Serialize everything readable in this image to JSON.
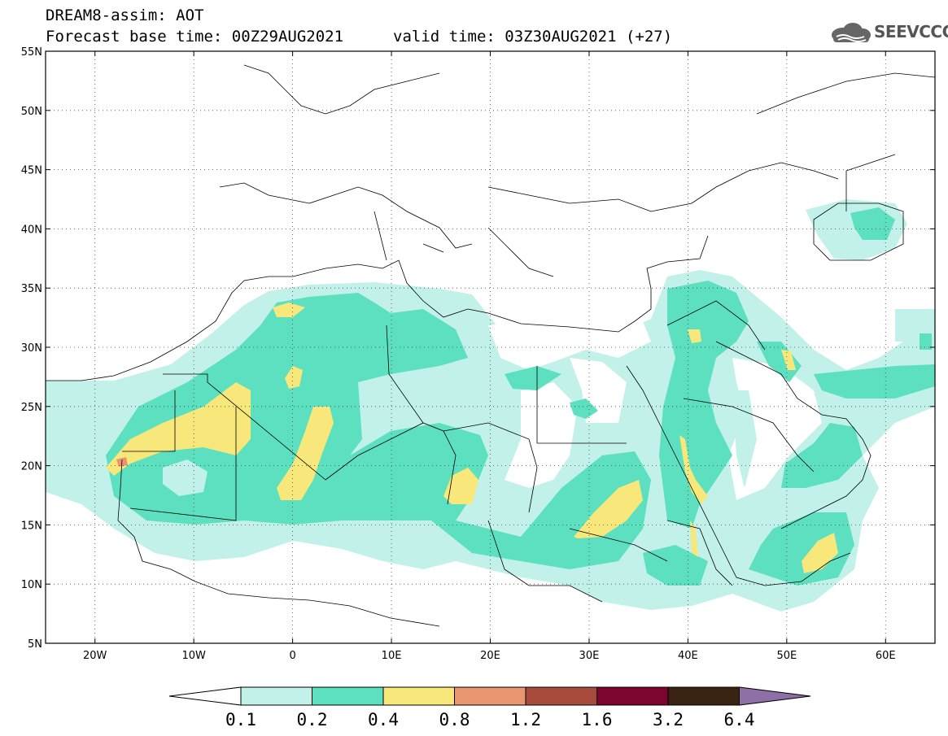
{
  "title": {
    "line1": "DREAM8-assim: AOT",
    "line2": "Forecast base time: 00Z29AUG2021",
    "valid": "valid time: 03Z30AUG2021 (+27)"
  },
  "logo": {
    "text": "SEEVCCC",
    "icon": "cloud-logo-icon"
  },
  "map": {
    "lon_range": [
      -25,
      65
    ],
    "lat_range": [
      5,
      55
    ],
    "lat_ticks": [
      {
        "v": 55,
        "label": "55N"
      },
      {
        "v": 50,
        "label": "50N"
      },
      {
        "v": 45,
        "label": "45N"
      },
      {
        "v": 40,
        "label": "40N"
      },
      {
        "v": 35,
        "label": "35N"
      },
      {
        "v": 30,
        "label": "30N"
      },
      {
        "v": 25,
        "label": "25N"
      },
      {
        "v": 20,
        "label": "20N"
      },
      {
        "v": 15,
        "label": "15N"
      },
      {
        "v": 10,
        "label": "10N"
      },
      {
        "v": 5,
        "label": "5N"
      }
    ],
    "lon_ticks": [
      {
        "v": -20,
        "label": "20W"
      },
      {
        "v": -10,
        "label": "10W"
      },
      {
        "v": 0,
        "label": "0"
      },
      {
        "v": 10,
        "label": "10E"
      },
      {
        "v": 20,
        "label": "20E"
      },
      {
        "v": 30,
        "label": "30E"
      },
      {
        "v": 40,
        "label": "40E"
      },
      {
        "v": 50,
        "label": "50E"
      },
      {
        "v": 60,
        "label": "60E"
      }
    ],
    "grid_lines": "dotted"
  },
  "legend": {
    "labels": [
      "0.1",
      "0.2",
      "0.4",
      "0.8",
      "1.2",
      "1.6",
      "3.2",
      "6.4"
    ],
    "colors": [
      "#ffffff",
      "#c2f1ea",
      "#5de0bf",
      "#f8e77b",
      "#e9956f",
      "#a84b3c",
      "#7c0530",
      "#3a2312",
      "#8f6fa8"
    ]
  }
}
